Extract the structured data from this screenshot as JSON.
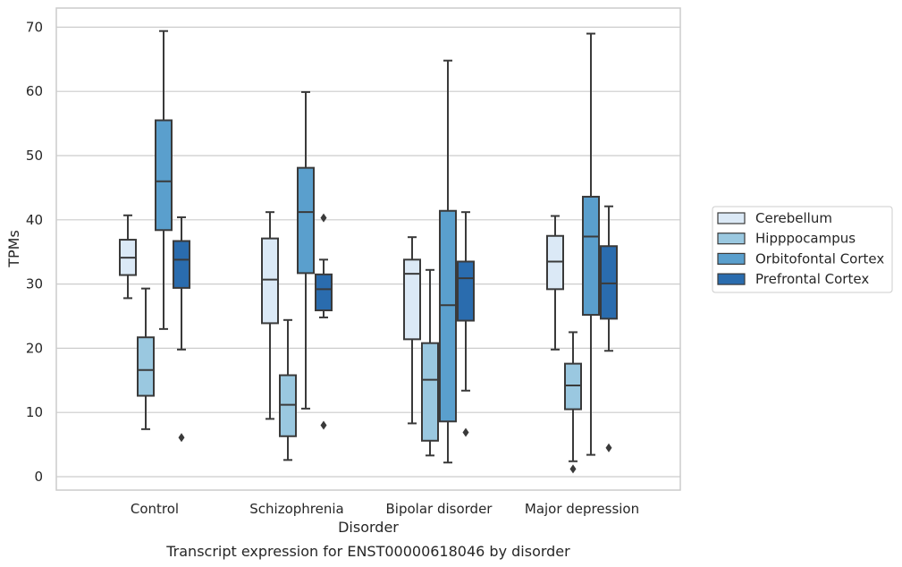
{
  "chart_data": {
    "type": "boxplot",
    "title": "",
    "caption": "Transcript expression for ENST00000618046 by disorder",
    "xlabel": "Disorder",
    "ylabel": "TPMs",
    "ylim": [
      -2,
      73
    ],
    "yticks": [
      0,
      10,
      20,
      30,
      40,
      50,
      60,
      70
    ],
    "grid": "y",
    "legend_position": "right",
    "categories": [
      "Control",
      "Schizophrenia",
      "Bipolar disorder",
      "Major depression"
    ],
    "series": [
      {
        "name": "Cerebellum",
        "color": "#dbe9f6",
        "boxes": [
          {
            "whisker_low": 27.8,
            "q1": 31.4,
            "median": 34.1,
            "q3": 36.9,
            "whisker_high": 40.7,
            "outliers": []
          },
          {
            "whisker_low": 9.0,
            "q1": 23.9,
            "median": 30.7,
            "q3": 37.1,
            "whisker_high": 41.2,
            "outliers": []
          },
          {
            "whisker_low": 8.3,
            "q1": 21.4,
            "median": 31.6,
            "q3": 33.8,
            "whisker_high": 37.3,
            "outliers": []
          },
          {
            "whisker_low": 19.8,
            "q1": 29.2,
            "median": 33.5,
            "q3": 37.5,
            "whisker_high": 40.6,
            "outliers": []
          }
        ]
      },
      {
        "name": "Hipppocampus",
        "color": "#9ac8e0",
        "boxes": [
          {
            "whisker_low": 7.4,
            "q1": 12.6,
            "median": 16.6,
            "q3": 21.7,
            "whisker_high": 29.3,
            "outliers": []
          },
          {
            "whisker_low": 2.6,
            "q1": 6.3,
            "median": 11.2,
            "q3": 15.8,
            "whisker_high": 24.4,
            "outliers": []
          },
          {
            "whisker_low": 3.3,
            "q1": 5.6,
            "median": 15.1,
            "q3": 20.8,
            "whisker_high": 32.2,
            "outliers": []
          },
          {
            "whisker_low": 2.4,
            "q1": 10.5,
            "median": 14.2,
            "q3": 17.6,
            "whisker_high": 22.5,
            "outliers": [
              1.2
            ]
          }
        ]
      },
      {
        "name": "Orbitofontal Cortex",
        "color": "#5a9fcd",
        "boxes": [
          {
            "whisker_low": 23.0,
            "q1": 38.4,
            "median": 46.0,
            "q3": 55.5,
            "whisker_high": 69.4,
            "outliers": []
          },
          {
            "whisker_low": 10.6,
            "q1": 31.7,
            "median": 41.2,
            "q3": 48.1,
            "whisker_high": 59.9,
            "outliers": []
          },
          {
            "whisker_low": 2.2,
            "q1": 8.6,
            "median": 26.7,
            "q3": 41.4,
            "whisker_high": 64.8,
            "outliers": []
          },
          {
            "whisker_low": 3.4,
            "q1": 25.2,
            "median": 37.4,
            "q3": 43.6,
            "whisker_high": 69.0,
            "outliers": []
          }
        ]
      },
      {
        "name": "Prefrontal Cortex",
        "color": "#2a6cae",
        "boxes": [
          {
            "whisker_low": 19.8,
            "q1": 29.4,
            "median": 33.8,
            "q3": 36.7,
            "whisker_high": 40.4,
            "outliers": [
              6.1
            ]
          },
          {
            "whisker_low": 24.8,
            "q1": 25.9,
            "median": 29.2,
            "q3": 31.5,
            "whisker_high": 33.8,
            "outliers": [
              40.3,
              8.0
            ]
          },
          {
            "whisker_low": 13.4,
            "q1": 24.3,
            "median": 30.9,
            "q3": 33.5,
            "whisker_high": 41.2,
            "outliers": [
              6.9
            ]
          },
          {
            "whisker_low": 19.6,
            "q1": 24.6,
            "median": 30.1,
            "q3": 35.9,
            "whisker_high": 42.1,
            "outliers": [
              4.5
            ]
          }
        ]
      }
    ]
  }
}
